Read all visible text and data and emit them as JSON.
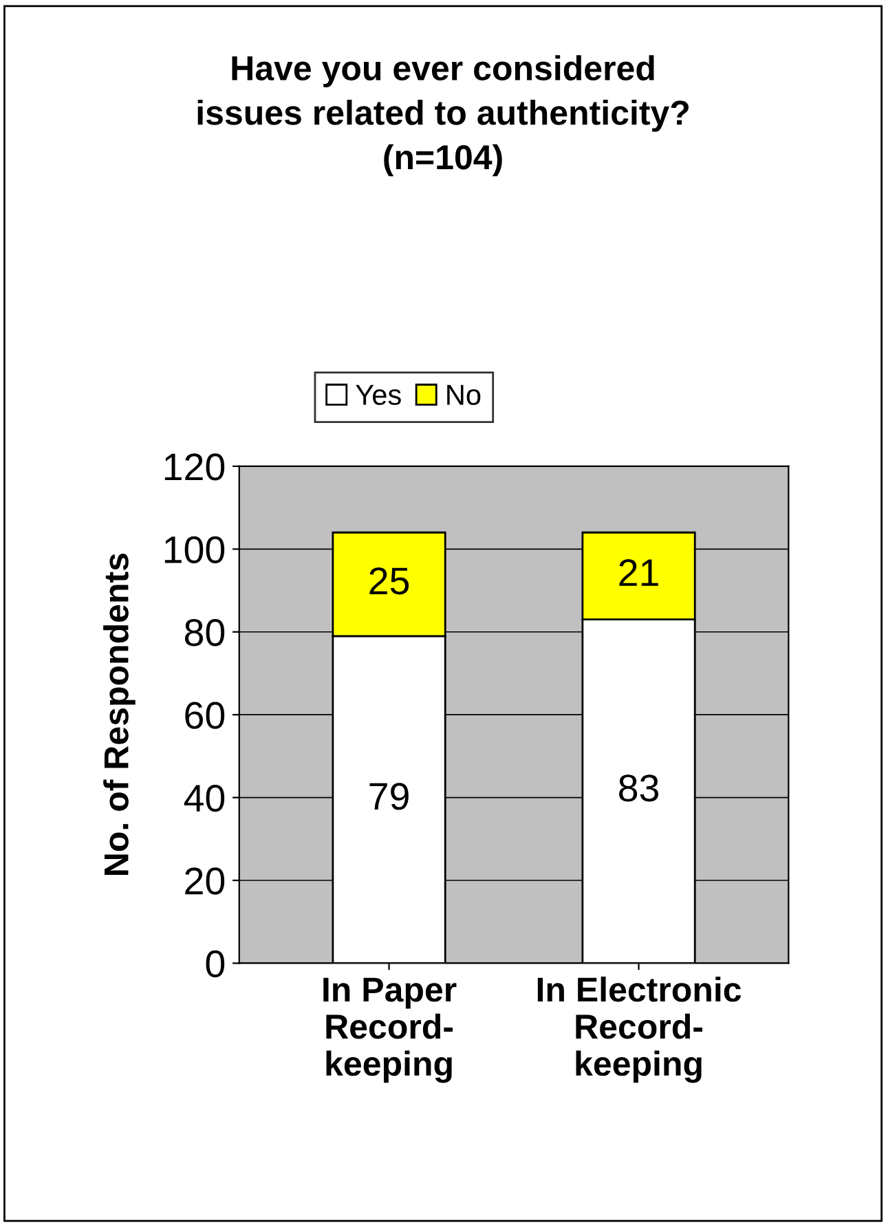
{
  "chart_data": {
    "type": "bar",
    "title": "Have you ever considered\nissues related to authenticity?\n(n=104)",
    "ylabel": "No. of Respondents",
    "categories": [
      "In Paper\nRecord-\nkeeping",
      "In Electronic\nRecord-\nkeeping"
    ],
    "series": [
      {
        "name": "Yes",
        "color": "#ffffff",
        "values": [
          79,
          83
        ]
      },
      {
        "name": "No",
        "color": "#ffff00",
        "values": [
          25,
          21
        ]
      }
    ],
    "stacked": true,
    "ylim": [
      0,
      120
    ],
    "yticks": [
      0,
      20,
      40,
      60,
      80,
      100,
      120
    ],
    "grid": "y",
    "legend": "top",
    "data_labels": true
  }
}
